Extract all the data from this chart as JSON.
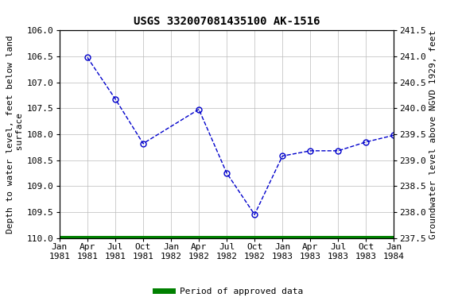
{
  "title": "USGS 332007081435100 AK-1516",
  "x_tick_labels": [
    "Jan\n1981",
    "Apr\n1981",
    "Jul\n1981",
    "Oct\n1981",
    "Jan\n1982",
    "Apr\n1982",
    "Jul\n1982",
    "Oct\n1982",
    "Jan\n1983",
    "Apr\n1983",
    "Jul\n1983",
    "Oct\n1983",
    "Jan\n1984"
  ],
  "x_tick_positions": [
    0,
    3,
    6,
    9,
    12,
    15,
    18,
    21,
    24,
    27,
    30,
    33,
    36
  ],
  "data_x": [
    3,
    6,
    9,
    15,
    18,
    21,
    24,
    27,
    30,
    33,
    36
  ],
  "data_y": [
    106.52,
    107.32,
    108.18,
    107.52,
    108.75,
    109.55,
    108.42,
    108.32,
    108.32,
    108.15,
    108.02
  ],
  "ylim_left_bottom": 110.0,
  "ylim_left_top": 106.0,
  "ylim_right_bottom": 237.5,
  "ylim_right_top": 241.5,
  "left_yticks": [
    106.0,
    106.5,
    107.0,
    107.5,
    108.0,
    108.5,
    109.0,
    109.5,
    110.0
  ],
  "right_yticks": [
    237.5,
    238.0,
    238.5,
    239.0,
    239.5,
    240.0,
    240.5,
    241.0,
    241.5
  ],
  "ylabel_left": "Depth to water level, feet below land\n surface",
  "ylabel_right": "Groundwater level above NGVD 1929, feet",
  "line_color": "#0000cc",
  "marker_color": "#0000cc",
  "approved_color": "#008000",
  "background_color": "#ffffff",
  "grid_color": "#bbbbbb",
  "legend_label": "Period of approved data",
  "title_fontsize": 10,
  "label_fontsize": 8,
  "tick_fontsize": 8,
  "green_bar_y": 110.0,
  "green_bar_thickness": 5
}
